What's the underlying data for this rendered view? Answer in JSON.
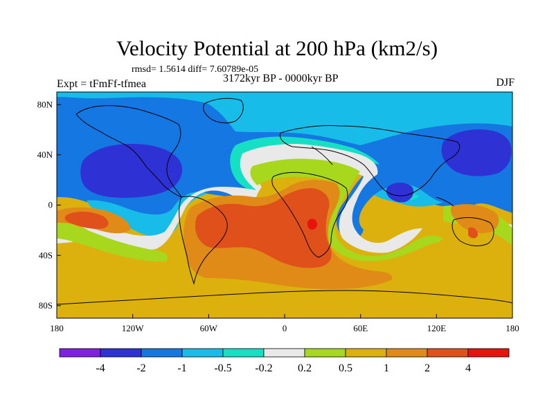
{
  "chart_data": {
    "type": "heatmap",
    "title": "Velocity Potential at 200 hPa (km2/s)",
    "subtitle": "rmsd= 1.5614 diff= 7.60789e-05",
    "period": "3172kyr BP - 0000kyr BP",
    "left_label": "Expt = tFmFf-tfmea",
    "right_label": "DJF",
    "x_ticks": [
      "180",
      "120W",
      "60W",
      "0",
      "60E",
      "120E",
      "180"
    ],
    "y_ticks": [
      "80N",
      "40N",
      "0",
      "40S",
      "80S"
    ],
    "xlim": [
      -180,
      180
    ],
    "ylim": [
      -90,
      90
    ],
    "colorbar": {
      "levels": [
        "-4",
        "-2",
        "-1",
        "-0.5",
        "-0.2",
        "0.2",
        "0.5",
        "1",
        "2",
        "4"
      ],
      "colors": [
        "#7f1fe0",
        "#2e31d4",
        "#1577e1",
        "#17bde8",
        "#16e0c4",
        "#e9e9e9",
        "#a7d81e",
        "#dcb10e",
        "#e08a18",
        "#e0501a",
        "#e6140d"
      ]
    },
    "regions": [
      {
        "name": "Negative anomaly, North Pacific",
        "level": "-2 to -4",
        "lon": -150,
        "lat": 20
      },
      {
        "name": "Negative anomaly, western Pacific",
        "level": "-2 to -4",
        "lon": 140,
        "lat": 38
      },
      {
        "name": "Negative anomaly, Indian Ocean",
        "level": "-1 to -2",
        "lon": 95,
        "lat": 10
      },
      {
        "name": "Positive anomaly, South America",
        "level": "2 to 4",
        "lon": -55,
        "lat": -20
      },
      {
        "name": "Positive anomaly, southern Africa",
        "level": "2 to 4",
        "lon": 25,
        "lat": -20
      },
      {
        "name": "Positive anomaly, South Pacific",
        "level": "1 to 2",
        "lon": -165,
        "lat": -10
      },
      {
        "name": "Positive anomaly, Australia",
        "level": "0.5 to 2",
        "lon": 150,
        "lat": -20
      }
    ]
  }
}
